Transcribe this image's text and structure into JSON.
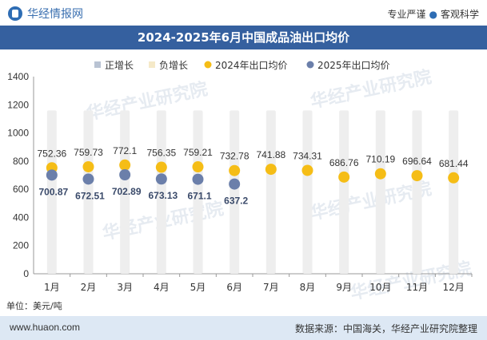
{
  "header": {
    "brand": "华经情报网",
    "tagline_left": "专业严谨",
    "tagline_right": "客观科学"
  },
  "title": "2024-2025年6月中国成品油出口均价",
  "unit_label": "单位：美元/吨",
  "footer": {
    "website": "www.huaon.com",
    "source": "数据来源：中国海关，华经产业研究院整理"
  },
  "watermark": "华经产业研究院",
  "colors": {
    "positive": "#b9c3d3",
    "negative": "#f5e9c8",
    "s2024": "#f5bd16",
    "s2025": "#6b7faa",
    "bar": "#eeeeee",
    "title_bg": "#35609f"
  },
  "chart_data": {
    "type": "scatter",
    "categories": [
      "1月",
      "2月",
      "3月",
      "4月",
      "5月",
      "6月",
      "7月",
      "8月",
      "9月",
      "10月",
      "11月",
      "12月"
    ],
    "legend": [
      "正增长",
      "负增长",
      "2024年出口均价",
      "2025年出口均价"
    ],
    "series": [
      {
        "name": "2024年出口均价",
        "values": [
          752.36,
          759.73,
          772.1,
          756.35,
          759.21,
          732.78,
          741.88,
          734.31,
          686.76,
          710.19,
          696.64,
          681.44
        ]
      },
      {
        "name": "2025年出口均价",
        "values": [
          700.87,
          672.51,
          702.89,
          673.13,
          671.1,
          637.2,
          null,
          null,
          null,
          null,
          null,
          null
        ]
      }
    ],
    "ylim": [
      0,
      1400
    ],
    "yticks": [
      0,
      200,
      400,
      600,
      800,
      1000,
      1200,
      1400
    ],
    "legend_position": "top"
  }
}
